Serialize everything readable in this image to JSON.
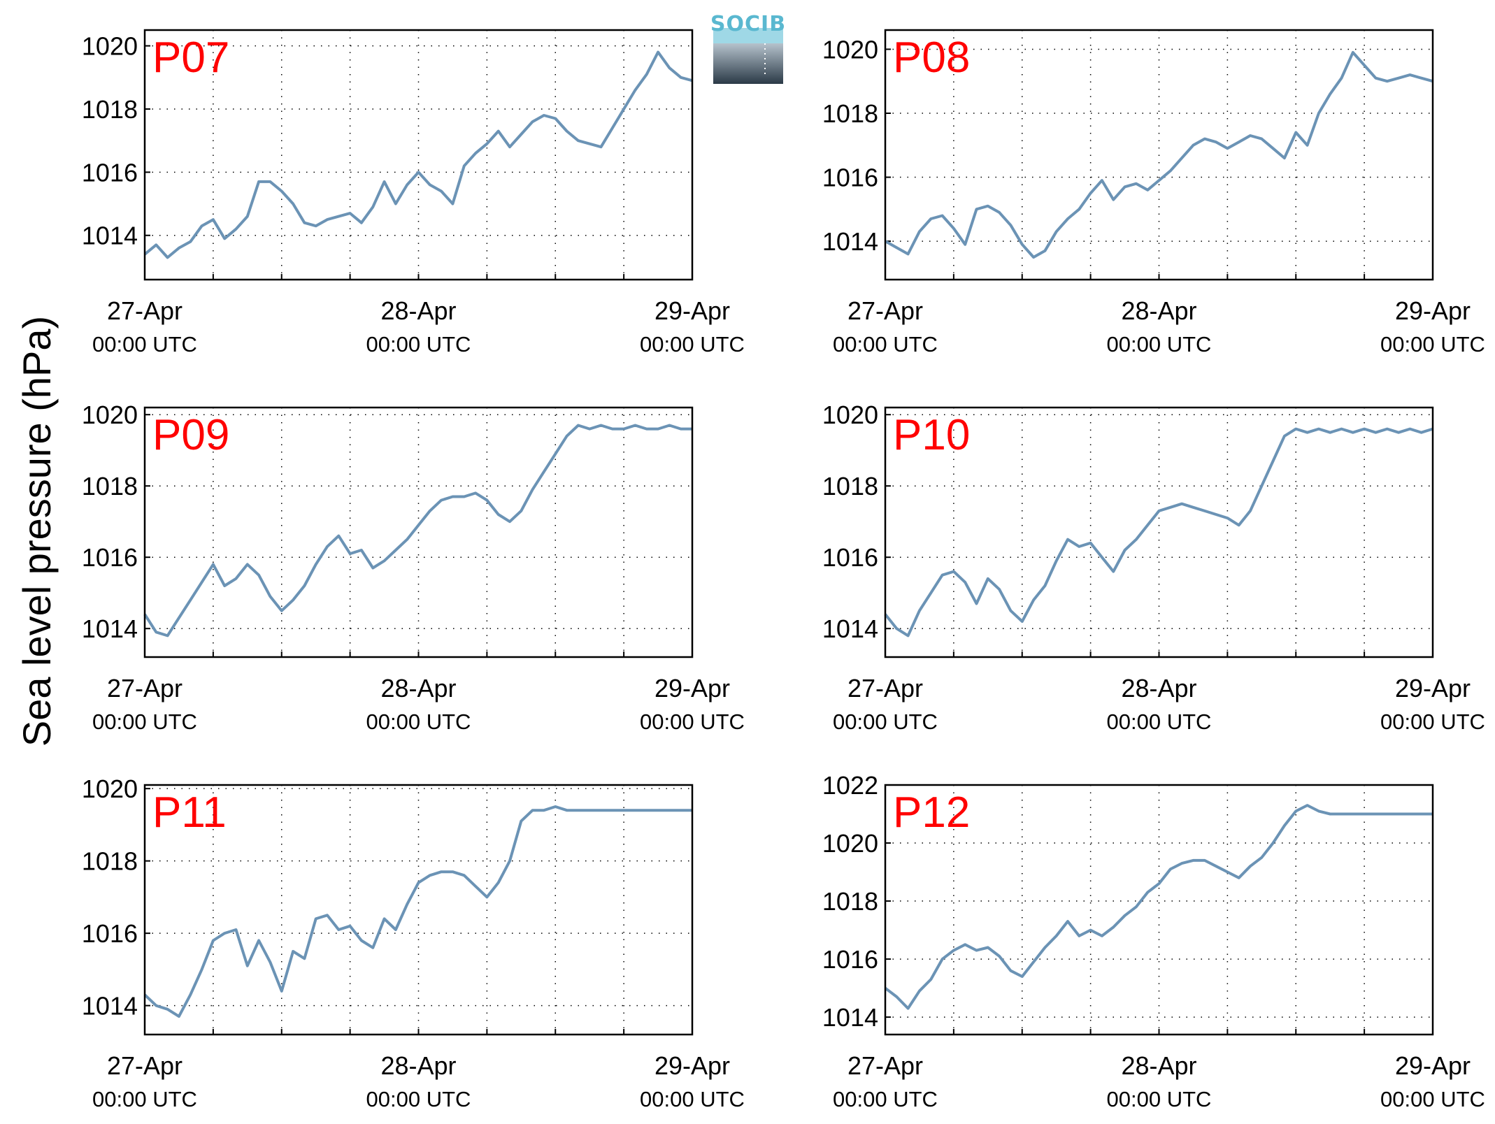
{
  "figure": {
    "ylabel": "Sea level pressure (hPa)",
    "logo_text": "SOCIB",
    "line_color": "#6b93b5",
    "label_color": "#ff0000",
    "grid": true
  },
  "chart_data": [
    {
      "type": "line",
      "station": "P07",
      "x_ticks": [
        {
          "date": "27-Apr",
          "time": "00:00 UTC"
        },
        {
          "date": "28-Apr",
          "time": "00:00 UTC"
        },
        {
          "date": "29-Apr",
          "time": "00:00 UTC"
        }
      ],
      "xlim": [
        "2014-04-27T00:00",
        "2014-04-29T00:00"
      ],
      "ylim": [
        1012.6,
        1020.5
      ],
      "yticks": [
        1014,
        1016,
        1018,
        1020
      ],
      "series": [
        {
          "x_hours": [
            0,
            1,
            2,
            3,
            4,
            5,
            6,
            7,
            8,
            9,
            10,
            11,
            12,
            13,
            14,
            15,
            16,
            17,
            18,
            19,
            20,
            21,
            22,
            23,
            24,
            25,
            26,
            27,
            28,
            29,
            30,
            31,
            32,
            33,
            34,
            35,
            36,
            37,
            38,
            39,
            40,
            41,
            42,
            43,
            44,
            45,
            46,
            47,
            48
          ],
          "values": [
            1013.4,
            1013.7,
            1013.3,
            1013.6,
            1013.8,
            1014.3,
            1014.5,
            1013.9,
            1014.2,
            1014.6,
            1015.7,
            1015.7,
            1015.4,
            1015.0,
            1014.4,
            1014.3,
            1014.5,
            1014.6,
            1014.7,
            1014.4,
            1014.9,
            1015.7,
            1015.0,
            1015.6,
            1016.0,
            1015.6,
            1015.4,
            1015.0,
            1016.2,
            1016.6,
            1016.9,
            1017.3,
            1016.8,
            1017.2,
            1017.6,
            1017.8,
            1017.7,
            1017.3,
            1017.0,
            1016.9,
            1016.8,
            1017.4,
            1018.0,
            1018.6,
            1019.1,
            1019.8,
            1019.3,
            1019.0,
            1018.9
          ]
        }
      ]
    },
    {
      "type": "line",
      "station": "P08",
      "x_ticks": [
        {
          "date": "27-Apr",
          "time": "00:00 UTC"
        },
        {
          "date": "28-Apr",
          "time": "00:00 UTC"
        },
        {
          "date": "29-Apr",
          "time": "00:00 UTC"
        }
      ],
      "xlim": [
        "2014-04-27T00:00",
        "2014-04-29T00:00"
      ],
      "ylim": [
        1012.8,
        1020.6
      ],
      "yticks": [
        1014,
        1016,
        1018,
        1020
      ],
      "series": [
        {
          "x_hours": [
            0,
            1,
            2,
            3,
            4,
            5,
            6,
            7,
            8,
            9,
            10,
            11,
            12,
            13,
            14,
            15,
            16,
            17,
            18,
            19,
            20,
            21,
            22,
            23,
            24,
            25,
            26,
            27,
            28,
            29,
            30,
            31,
            32,
            33,
            34,
            35,
            36,
            37,
            38,
            39,
            40,
            41,
            42,
            43,
            44,
            45,
            46,
            47,
            48
          ],
          "values": [
            1014.0,
            1013.8,
            1013.6,
            1014.3,
            1014.7,
            1014.8,
            1014.4,
            1013.9,
            1015.0,
            1015.1,
            1014.9,
            1014.5,
            1013.9,
            1013.5,
            1013.7,
            1014.3,
            1014.7,
            1015.0,
            1015.5,
            1015.9,
            1015.3,
            1015.7,
            1015.8,
            1015.6,
            1015.9,
            1016.2,
            1016.6,
            1017.0,
            1017.2,
            1017.1,
            1016.9,
            1017.1,
            1017.3,
            1017.2,
            1016.9,
            1016.6,
            1017.4,
            1017.0,
            1018.0,
            1018.6,
            1019.1,
            1019.9,
            1019.5,
            1019.1,
            1019.0,
            1019.1,
            1019.2,
            1019.1,
            1019.0
          ]
        }
      ]
    },
    {
      "type": "line",
      "station": "P09",
      "x_ticks": [
        {
          "date": "27-Apr",
          "time": "00:00 UTC"
        },
        {
          "date": "28-Apr",
          "time": "00:00 UTC"
        },
        {
          "date": "29-Apr",
          "time": "00:00 UTC"
        }
      ],
      "xlim": [
        "2014-04-27T00:00",
        "2014-04-29T00:00"
      ],
      "ylim": [
        1013.2,
        1020.2
      ],
      "yticks": [
        1014,
        1016,
        1018,
        1020
      ],
      "series": [
        {
          "x_hours": [
            0,
            1,
            2,
            3,
            4,
            5,
            6,
            7,
            8,
            9,
            10,
            11,
            12,
            13,
            14,
            15,
            16,
            17,
            18,
            19,
            20,
            21,
            22,
            23,
            24,
            25,
            26,
            27,
            28,
            29,
            30,
            31,
            32,
            33,
            34,
            35,
            36,
            37,
            38,
            39,
            40,
            41,
            42,
            43,
            44,
            45,
            46,
            47,
            48
          ],
          "values": [
            1014.4,
            1013.9,
            1013.8,
            1014.3,
            1014.8,
            1015.3,
            1015.8,
            1015.2,
            1015.4,
            1015.8,
            1015.5,
            1014.9,
            1014.5,
            1014.8,
            1015.2,
            1015.8,
            1016.3,
            1016.6,
            1016.1,
            1016.2,
            1015.7,
            1015.9,
            1016.2,
            1016.5,
            1016.9,
            1017.3,
            1017.6,
            1017.7,
            1017.7,
            1017.8,
            1017.6,
            1017.2,
            1017.0,
            1017.3,
            1017.9,
            1018.4,
            1018.9,
            1019.4,
            1019.7,
            1019.6,
            1019.7,
            1019.6,
            1019.6,
            1019.7,
            1019.6,
            1019.6,
            1019.7,
            1019.6,
            1019.6
          ]
        }
      ]
    },
    {
      "type": "line",
      "station": "P10",
      "x_ticks": [
        {
          "date": "27-Apr",
          "time": "00:00 UTC"
        },
        {
          "date": "28-Apr",
          "time": "00:00 UTC"
        },
        {
          "date": "29-Apr",
          "time": "00:00 UTC"
        }
      ],
      "xlim": [
        "2014-04-27T00:00",
        "2014-04-29T00:00"
      ],
      "ylim": [
        1013.2,
        1020.2
      ],
      "yticks": [
        1014,
        1016,
        1018,
        1020
      ],
      "series": [
        {
          "x_hours": [
            0,
            1,
            2,
            3,
            4,
            5,
            6,
            7,
            8,
            9,
            10,
            11,
            12,
            13,
            14,
            15,
            16,
            17,
            18,
            19,
            20,
            21,
            22,
            23,
            24,
            25,
            26,
            27,
            28,
            29,
            30,
            31,
            32,
            33,
            34,
            35,
            36,
            37,
            38,
            39,
            40,
            41,
            42,
            43,
            44,
            45,
            46,
            47,
            48
          ],
          "values": [
            1014.4,
            1014.0,
            1013.8,
            1014.5,
            1015.0,
            1015.5,
            1015.6,
            1015.3,
            1014.7,
            1015.4,
            1015.1,
            1014.5,
            1014.2,
            1014.8,
            1015.2,
            1015.9,
            1016.5,
            1016.3,
            1016.4,
            1016.0,
            1015.6,
            1016.2,
            1016.5,
            1016.9,
            1017.3,
            1017.4,
            1017.5,
            1017.4,
            1017.3,
            1017.2,
            1017.1,
            1016.9,
            1017.3,
            1018.0,
            1018.7,
            1019.4,
            1019.6,
            1019.5,
            1019.6,
            1019.5,
            1019.6,
            1019.5,
            1019.6,
            1019.5,
            1019.6,
            1019.5,
            1019.6,
            1019.5,
            1019.6
          ]
        }
      ]
    },
    {
      "type": "line",
      "station": "P11",
      "x_ticks": [
        {
          "date": "27-Apr",
          "time": "00:00 UTC"
        },
        {
          "date": "28-Apr",
          "time": "00:00 UTC"
        },
        {
          "date": "29-Apr",
          "time": "00:00 UTC"
        }
      ],
      "xlim": [
        "2014-04-27T00:00",
        "2014-04-29T00:00"
      ],
      "ylim": [
        1013.2,
        1020.1
      ],
      "yticks": [
        1014,
        1016,
        1018,
        1020
      ],
      "series": [
        {
          "x_hours": [
            0,
            1,
            2,
            3,
            4,
            5,
            6,
            7,
            8,
            9,
            10,
            11,
            12,
            13,
            14,
            15,
            16,
            17,
            18,
            19,
            20,
            21,
            22,
            23,
            24,
            25,
            26,
            27,
            28,
            29,
            30,
            31,
            32,
            33,
            34,
            35,
            36,
            37,
            38,
            39,
            40,
            41,
            42,
            43,
            44,
            45,
            46,
            47,
            48
          ],
          "values": [
            1014.3,
            1014.0,
            1013.9,
            1013.7,
            1014.3,
            1015.0,
            1015.8,
            1016.0,
            1016.1,
            1015.1,
            1015.8,
            1015.2,
            1014.4,
            1015.5,
            1015.3,
            1016.4,
            1016.5,
            1016.1,
            1016.2,
            1015.8,
            1015.6,
            1016.4,
            1016.1,
            1016.8,
            1017.4,
            1017.6,
            1017.7,
            1017.7,
            1017.6,
            1017.3,
            1017.0,
            1017.4,
            1018.0,
            1019.1,
            1019.4,
            1019.4,
            1019.5,
            1019.4,
            1019.4,
            1019.4,
            1019.4,
            1019.4,
            1019.4,
            1019.4,
            1019.4,
            1019.4,
            1019.4,
            1019.4,
            1019.4
          ]
        }
      ]
    },
    {
      "type": "line",
      "station": "P12",
      "x_ticks": [
        {
          "date": "27-Apr",
          "time": "00:00 UTC"
        },
        {
          "date": "28-Apr",
          "time": "00:00 UTC"
        },
        {
          "date": "29-Apr",
          "time": "00:00 UTC"
        }
      ],
      "xlim": [
        "2014-04-27T00:00",
        "2014-04-29T00:00"
      ],
      "ylim": [
        1013.4,
        1022.0
      ],
      "yticks": [
        1014,
        1016,
        1018,
        1020,
        1022
      ],
      "series": [
        {
          "x_hours": [
            0,
            1,
            2,
            3,
            4,
            5,
            6,
            7,
            8,
            9,
            10,
            11,
            12,
            13,
            14,
            15,
            16,
            17,
            18,
            19,
            20,
            21,
            22,
            23,
            24,
            25,
            26,
            27,
            28,
            29,
            30,
            31,
            32,
            33,
            34,
            35,
            36,
            37,
            38,
            39,
            40,
            41,
            42,
            43,
            44,
            45,
            46,
            47,
            48
          ],
          "values": [
            1015.0,
            1014.7,
            1014.3,
            1014.9,
            1015.3,
            1016.0,
            1016.3,
            1016.5,
            1016.3,
            1016.4,
            1016.1,
            1015.6,
            1015.4,
            1015.9,
            1016.4,
            1016.8,
            1017.3,
            1016.8,
            1017.0,
            1016.8,
            1017.1,
            1017.5,
            1017.8,
            1018.3,
            1018.6,
            1019.1,
            1019.3,
            1019.4,
            1019.4,
            1019.2,
            1019.0,
            1018.8,
            1019.2,
            1019.5,
            1020.0,
            1020.6,
            1021.1,
            1021.3,
            1021.1,
            1021.0,
            1021.0,
            1021.0,
            1021.0,
            1021.0,
            1021.0,
            1021.0,
            1021.0,
            1021.0,
            1021.0
          ]
        }
      ]
    }
  ]
}
